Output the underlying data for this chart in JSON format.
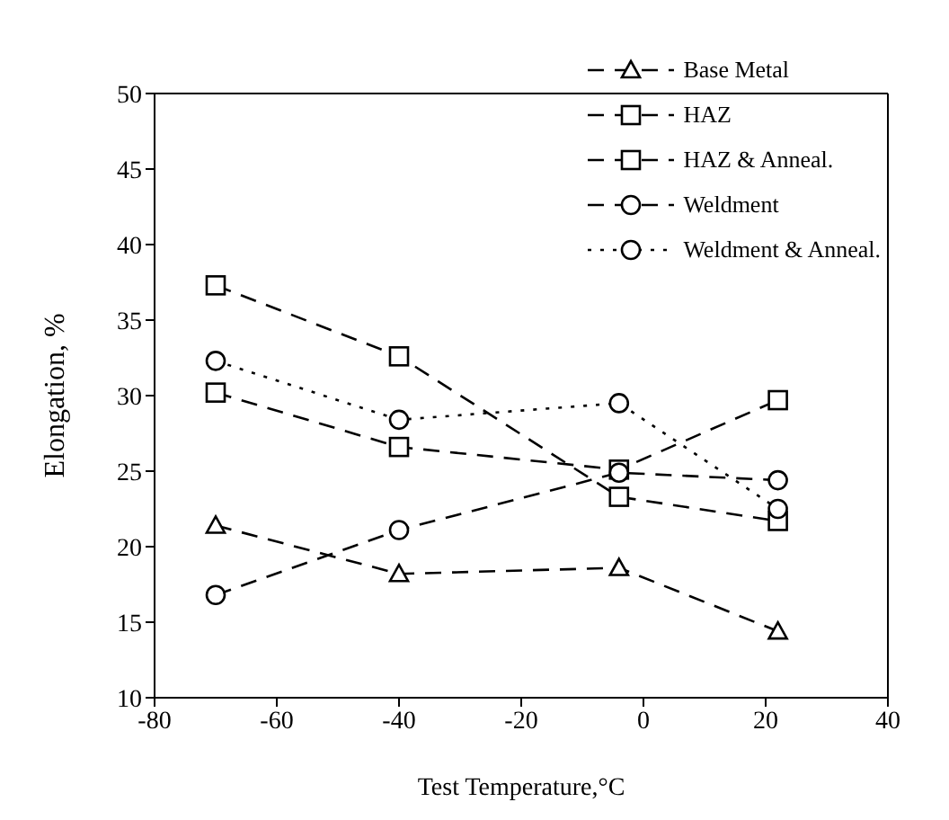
{
  "chart_data": {
    "type": "line",
    "xlabel": "Test Temperature,°C",
    "ylabel": "Elongation, %",
    "x": [
      -70,
      -40,
      -4,
      22
    ],
    "xlim": [
      -80,
      40
    ],
    "xticks": [
      -80,
      -60,
      -40,
      -20,
      0,
      20,
      40
    ],
    "ylim": [
      10,
      50
    ],
    "yticks": [
      10,
      15,
      20,
      25,
      30,
      35,
      40,
      45,
      50
    ],
    "grid": false,
    "legend": "top right",
    "series": [
      {
        "name": "Base Metal",
        "color": "#000000",
        "values": [
          21.4,
          18.2,
          18.6,
          14.4
        ],
        "marker": "triangle",
        "line_style": "dashed"
      },
      {
        "name": "HAZ",
        "color": "#000000",
        "values": [
          30.2,
          26.6,
          25.1,
          29.7
        ],
        "marker": "square",
        "line_style": "dashed"
      },
      {
        "name": "HAZ & Anneal.",
        "color": "#000000",
        "values": [
          37.3,
          32.6,
          23.3,
          21.7
        ],
        "marker": "square",
        "line_style": "dashed"
      },
      {
        "name": "Weldment",
        "color": "#000000",
        "values": [
          16.8,
          21.1,
          24.9,
          24.4
        ],
        "marker": "circle",
        "line_style": "dashed"
      },
      {
        "name": "Weldment & Anneal.",
        "color": "#000000",
        "values": [
          32.3,
          28.4,
          29.5,
          22.5
        ],
        "marker": "circle",
        "line_style": "dotted"
      }
    ]
  }
}
